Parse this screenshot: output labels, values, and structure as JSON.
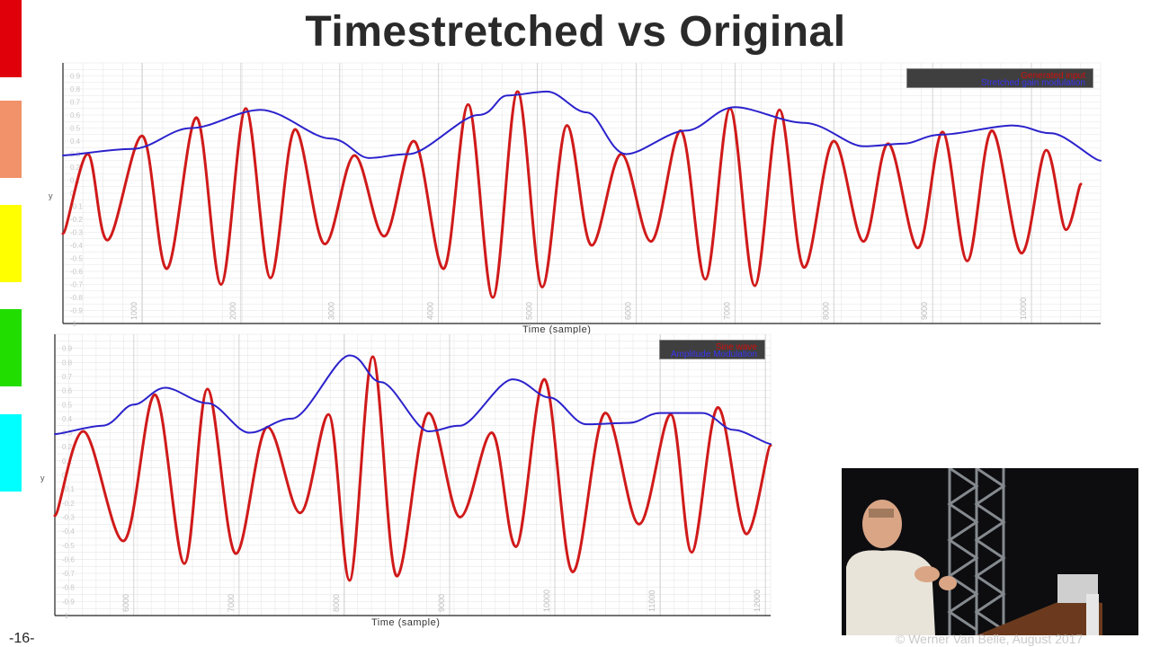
{
  "slide": {
    "title": "Timestretched vs Original",
    "page_number": "-16-",
    "copyright": "© Werner Van Belle, August 2017",
    "color_strip": [
      "#e0000a",
      "#f1926a",
      "#ffff00",
      "#22dd00",
      "#00ffff"
    ]
  },
  "colors": {
    "signal": "#d01a1a",
    "envelope": "#2b22cc",
    "grid": "#e6e6e6"
  },
  "chart_data": [
    {
      "type": "line",
      "xlabel": "Time (sample)",
      "ylabel": "y",
      "xlim": [
        200,
        10700
      ],
      "ylim": [
        -1,
        1
      ],
      "grid": true,
      "legend_position": "top-right",
      "legend": [
        "Generated input",
        "Stretched gain modulation"
      ],
      "xticks": [
        "1000",
        "2000",
        "3000",
        "4000",
        "5000",
        "6000",
        "7000",
        "8000",
        "9000",
        "10000"
      ],
      "yticks": [
        "0.9",
        "0.8",
        "0.7",
        "0.6",
        "0.5",
        "0.4",
        "0.3",
        "0.2",
        "0.1",
        "0",
        "-0.1",
        "-0.2",
        "-0.3",
        "-0.4",
        "-0.5",
        "-0.6",
        "-0.7",
        "-0.8",
        "-0.9",
        "-1"
      ],
      "series": [
        {
          "name": "Generated input",
          "x": [
            200,
            450,
            650,
            1000,
            1250,
            1550,
            1800,
            2050,
            2300,
            2550,
            2850,
            3150,
            3450,
            3750,
            4050,
            4300,
            4550,
            4800,
            5050,
            5300,
            5550,
            5850,
            6150,
            6450,
            6700,
            6950,
            7200,
            7450,
            7700,
            8000,
            8300,
            8550,
            8850,
            9100,
            9350,
            9600,
            9900,
            10150,
            10350,
            10500
          ],
          "y": [
            -0.31,
            0.3,
            -0.36,
            0.44,
            -0.58,
            0.58,
            -0.7,
            0.65,
            -0.65,
            0.49,
            -0.39,
            0.29,
            -0.33,
            0.4,
            -0.58,
            0.68,
            -0.8,
            0.78,
            -0.72,
            0.52,
            -0.4,
            0.3,
            -0.37,
            0.48,
            -0.66,
            0.65,
            -0.71,
            0.64,
            -0.57,
            0.4,
            -0.37,
            0.38,
            -0.42,
            0.47,
            -0.52,
            0.48,
            -0.46,
            0.33,
            -0.28,
            0.07
          ]
        },
        {
          "name": "Stretched gain modulation",
          "x": [
            200,
            900,
            1500,
            2200,
            2900,
            3300,
            3700,
            4400,
            4700,
            5100,
            5500,
            5900,
            6500,
            7000,
            7700,
            8300,
            8700,
            9100,
            9800,
            10200,
            10700
          ],
          "y": [
            0.29,
            0.34,
            0.5,
            0.64,
            0.42,
            0.27,
            0.3,
            0.6,
            0.75,
            0.78,
            0.62,
            0.3,
            0.48,
            0.66,
            0.54,
            0.36,
            0.38,
            0.45,
            0.52,
            0.46,
            0.25
          ]
        }
      ]
    },
    {
      "type": "line",
      "xlabel": "Time (sample)",
      "ylabel": "y",
      "xlim": [
        5250,
        12050
      ],
      "ylim": [
        -1,
        1
      ],
      "grid": true,
      "legend_position": "top-right",
      "legend": [
        "Sine wave",
        "Amplitude Modulation"
      ],
      "xticks": [
        "6000",
        "7000",
        "8000",
        "9000",
        "10000",
        "11000",
        "12000"
      ],
      "yticks": [
        "0.9",
        "0.8",
        "0.7",
        "0.6",
        "0.5",
        "0.4",
        "0.3",
        "0.2",
        "0.1",
        "0",
        "-0.1",
        "-0.2",
        "-0.3",
        "-0.4",
        "-0.5",
        "-0.6",
        "-0.7",
        "-0.8",
        "-0.9",
        "-1"
      ],
      "series": [
        {
          "name": "Sine wave",
          "x": [
            5250,
            5520,
            5900,
            6200,
            6480,
            6700,
            6970,
            7270,
            7580,
            7850,
            8050,
            8270,
            8500,
            8800,
            9100,
            9400,
            9630,
            9900,
            10170,
            10480,
            10800,
            11100,
            11300,
            11550,
            11820,
            12050
          ],
          "y": [
            -0.29,
            0.31,
            -0.47,
            0.57,
            -0.63,
            0.61,
            -0.56,
            0.34,
            -0.27,
            0.43,
            -0.75,
            0.84,
            -0.72,
            0.44,
            -0.3,
            0.3,
            -0.51,
            0.68,
            -0.69,
            0.44,
            -0.35,
            0.43,
            -0.55,
            0.48,
            -0.42,
            0.21
          ]
        },
        {
          "name": "Amplitude Modulation",
          "x": [
            5250,
            5700,
            6000,
            6300,
            6700,
            7100,
            7500,
            8050,
            8350,
            8800,
            9100,
            9600,
            9950,
            10300,
            10700,
            11000,
            11400,
            11700,
            12050
          ],
          "y": [
            0.29,
            0.35,
            0.5,
            0.62,
            0.51,
            0.3,
            0.4,
            0.85,
            0.66,
            0.31,
            0.35,
            0.68,
            0.55,
            0.36,
            0.37,
            0.44,
            0.44,
            0.32,
            0.22
          ]
        }
      ]
    }
  ]
}
